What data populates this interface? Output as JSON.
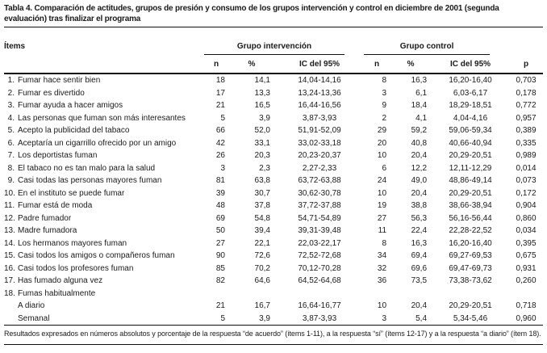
{
  "title": "Tabla 4. Comparación de actitudes, grupos de presión y consumo de los grupos intervención y control en diciembre de 2001 (segunda evaluación) tras finalizar el programa",
  "colors": {
    "background": "#ffffff",
    "text": "#1a1a1a",
    "rule": "#111111"
  },
  "table": {
    "items_header": "Ítems",
    "group_intervention": "Grupo intervención",
    "group_control": "Grupo control",
    "subheaders": [
      "n",
      "%",
      "IC del 95%",
      "n",
      "%",
      "IC del 95%"
    ],
    "p_header": "p",
    "rows": [
      {
        "num": "1.",
        "text": "Fumar hace sentir bien",
        "cells": [
          "18",
          "14,1",
          "14,04-14,16",
          "8",
          "16,3",
          "16,20-16,40",
          "0,703"
        ]
      },
      {
        "num": "2.",
        "text": "Fumar es divertido",
        "cells": [
          "17",
          "13,3",
          "13,24-13,36",
          "3",
          "6,1",
          "6,03-6,17",
          "0,178"
        ]
      },
      {
        "num": "3.",
        "text": "Fumar ayuda a hacer amigos",
        "cells": [
          "21",
          "16,5",
          "16,44-16,56",
          "9",
          "18,4",
          "18,29-18,51",
          "0,772"
        ]
      },
      {
        "num": "4.",
        "text": "Las personas que fuman son más interesantes",
        "cells": [
          "5",
          "3,9",
          "3,87-3,93",
          "2",
          "4,1",
          "4,04-4,16",
          "0,957"
        ]
      },
      {
        "num": "5.",
        "text": "Acepto la publicidad del tabaco",
        "cells": [
          "66",
          "52,0",
          "51,91-52,09",
          "29",
          "59,2",
          "59,06-59,34",
          "0,389"
        ]
      },
      {
        "num": "6.",
        "text": "Aceptaría un cigarrillo ofrecido por un amigo",
        "cells": [
          "42",
          "33,1",
          "33,02-33,18",
          "20",
          "40,8",
          "40,66-40,94",
          "0,335"
        ]
      },
      {
        "num": "7.",
        "text": "Los deportistas fuman",
        "cells": [
          "26",
          "20,3",
          "20,23-20,37",
          "10",
          "20,4",
          "20,29-20,51",
          "0,989"
        ]
      },
      {
        "num": "8.",
        "text": "El tabaco no es tan malo para la salud",
        "cells": [
          "3",
          "2,3",
          "2,27-2,33",
          "6",
          "12,2",
          "12,11-12,29",
          "0,014"
        ]
      },
      {
        "num": "9.",
        "text": "Casi todas las personas mayores fuman",
        "cells": [
          "81",
          "63,8",
          "63,72-63,88",
          "24",
          "49,0",
          "48,86-49,14",
          "0,073"
        ]
      },
      {
        "num": "10.",
        "text": "En el instituto se puede fumar",
        "cells": [
          "39",
          "30,7",
          "30,62-30,78",
          "10",
          "20,4",
          "20,29-20,51",
          "0,172"
        ]
      },
      {
        "num": "11.",
        "text": "Fumar está de moda",
        "cells": [
          "48",
          "37,8",
          "37,72-37,88",
          "19",
          "38,8",
          "38,66-38,94",
          "0,904"
        ]
      },
      {
        "num": "12.",
        "text": "Padre fumador",
        "cells": [
          "69",
          "54,8",
          "54,71-54,89",
          "27",
          "56,3",
          "56,16-56,44",
          "0,860"
        ]
      },
      {
        "num": "13.",
        "text": "Madre fumadora",
        "cells": [
          "50",
          "39,4",
          "39,31-39,48",
          "11",
          "22,4",
          "22,28-22,52",
          "0,034"
        ]
      },
      {
        "num": "14.",
        "text": "Los hermanos mayores fuman",
        "cells": [
          "27",
          "22,1",
          "22,03-22,17",
          "8",
          "16,3",
          "16,20-16,40",
          "0,395"
        ]
      },
      {
        "num": "15.",
        "text": "Casi todos los amigos o compañeros fuman",
        "cells": [
          "90",
          "72,6",
          "72,52-72,68",
          "34",
          "69,4",
          "69,27-69,53",
          "0,675"
        ]
      },
      {
        "num": "16.",
        "text": "Casi todos los profesores fuman",
        "cells": [
          "85",
          "70,2",
          "70,12-70,28",
          "32",
          "69,6",
          "69,47-69,73",
          "0,931"
        ]
      },
      {
        "num": "17.",
        "text": "Has fumado alguna vez",
        "cells": [
          "82",
          "64,6",
          "64,52-64,68",
          "36",
          "73,5",
          "73,38-73,62",
          "0,260"
        ]
      },
      {
        "num": "18.",
        "text": "Fumas habitualmente",
        "cells": [
          "",
          "",
          "",
          "",
          "",
          "",
          ""
        ]
      },
      {
        "num": "",
        "text": "A diario",
        "cells": [
          "21",
          "16,7",
          "16,64-16,77",
          "10",
          "20,4",
          "20,29-20,51",
          "0,718"
        ]
      },
      {
        "num": "",
        "text": "Semanal",
        "cells": [
          "5",
          "3,9",
          "3,87-3,93",
          "3",
          "5,4",
          "5,34-5,46",
          "0,960"
        ]
      }
    ]
  },
  "footnote": "Resultados expresados en números absolutos y porcentaje de la respuesta “de acuerdo” (ítems 1-11), a la respuesta “sí” (ítems 12-17) y a la respuesta “a diario” (ítem 18)."
}
